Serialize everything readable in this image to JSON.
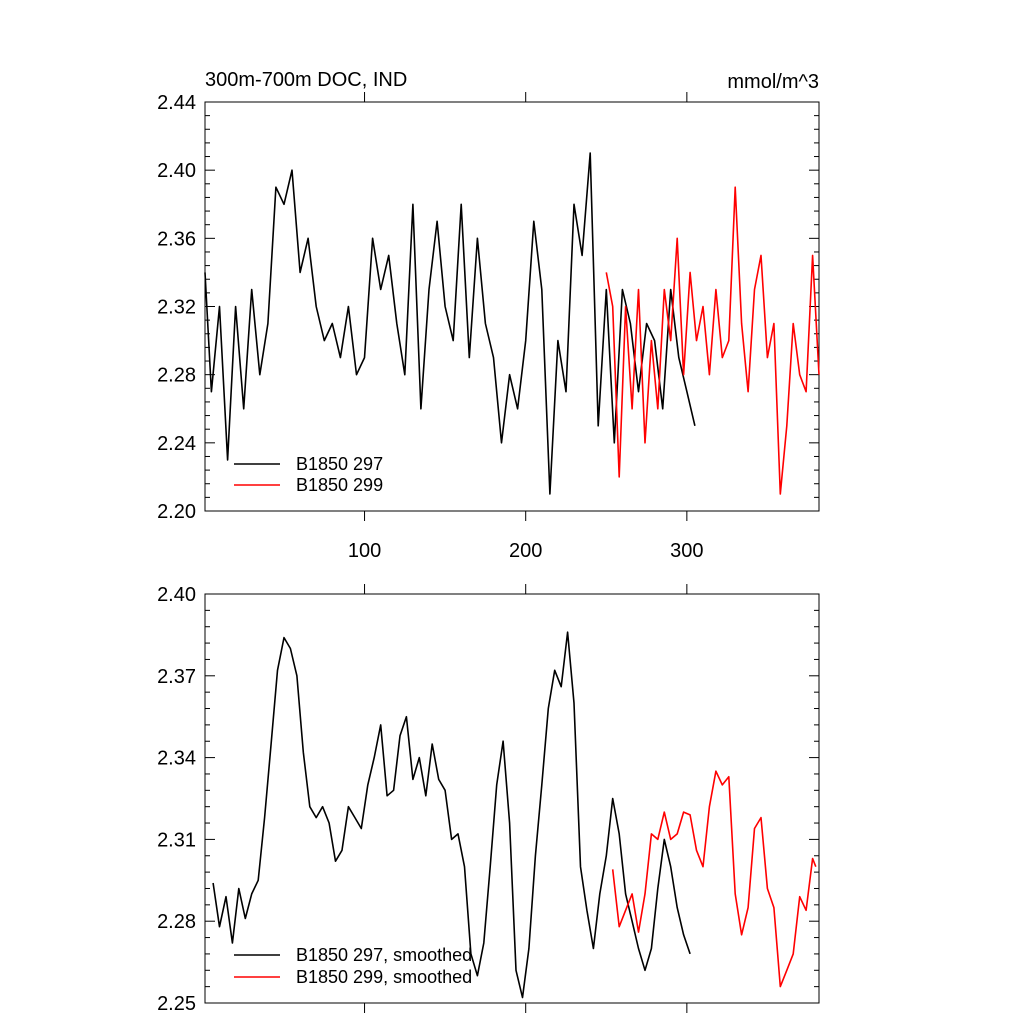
{
  "chart_data": [
    {
      "type": "line",
      "title": "300m-700m DOC, IND",
      "units_label": "mmol/m^3",
      "xlim": [
        1,
        382
      ],
      "ylim": [
        2.2,
        2.44
      ],
      "x_ticks": [
        100,
        200,
        300
      ],
      "x_tick_labels": [
        "100",
        "200",
        "300"
      ],
      "y_ticks": [
        2.2,
        2.24,
        2.28,
        2.32,
        2.36,
        2.4,
        2.44
      ],
      "y_tick_labels": [
        "2.20",
        "2.24",
        "2.28",
        "2.32",
        "2.36",
        "2.40",
        "2.44"
      ],
      "legend_position": "bottom-left",
      "series": [
        {
          "name": "B1850 297",
          "color": "#000000",
          "x": [
            1,
            5,
            10,
            15,
            20,
            25,
            30,
            35,
            40,
            45,
            50,
            55,
            60,
            65,
            70,
            75,
            80,
            85,
            90,
            95,
            100,
            105,
            110,
            115,
            120,
            125,
            130,
            135,
            140,
            145,
            150,
            155,
            160,
            165,
            170,
            175,
            180,
            185,
            190,
            195,
            200,
            205,
            210,
            215,
            220,
            225,
            230,
            235,
            240,
            245,
            250,
            255,
            260,
            265,
            270,
            275,
            280,
            285,
            290,
            295,
            300,
            305
          ],
          "values": [
            2.34,
            2.27,
            2.32,
            2.23,
            2.32,
            2.26,
            2.33,
            2.28,
            2.31,
            2.39,
            2.38,
            2.4,
            2.34,
            2.36,
            2.32,
            2.3,
            2.31,
            2.29,
            2.32,
            2.28,
            2.29,
            2.36,
            2.33,
            2.35,
            2.31,
            2.28,
            2.38,
            2.26,
            2.33,
            2.37,
            2.32,
            2.3,
            2.38,
            2.29,
            2.36,
            2.31,
            2.29,
            2.24,
            2.28,
            2.26,
            2.3,
            2.37,
            2.33,
            2.21,
            2.3,
            2.27,
            2.38,
            2.35,
            2.41,
            2.25,
            2.33,
            2.24,
            2.33,
            2.31,
            2.27,
            2.31,
            2.3,
            2.26,
            2.33,
            2.29,
            2.27,
            2.25
          ]
        },
        {
          "name": "B1850 299",
          "color": "#ff0000",
          "x": [
            250,
            254,
            258,
            262,
            266,
            270,
            274,
            278,
            282,
            286,
            290,
            294,
            298,
            302,
            306,
            310,
            314,
            318,
            322,
            326,
            330,
            334,
            338,
            342,
            346,
            350,
            354,
            358,
            362,
            366,
            370,
            374,
            378,
            382
          ],
          "values": [
            2.34,
            2.32,
            2.22,
            2.32,
            2.26,
            2.33,
            2.24,
            2.3,
            2.26,
            2.33,
            2.3,
            2.36,
            2.28,
            2.34,
            2.3,
            2.32,
            2.28,
            2.33,
            2.29,
            2.3,
            2.39,
            2.31,
            2.27,
            2.33,
            2.35,
            2.29,
            2.31,
            2.21,
            2.25,
            2.31,
            2.28,
            2.27,
            2.35,
            2.28
          ]
        }
      ]
    },
    {
      "type": "line",
      "xlim": [
        1,
        382
      ],
      "ylim": [
        2.25,
        2.4
      ],
      "x_ticks": [
        100,
        200,
        300
      ],
      "y_ticks": [
        2.25,
        2.28,
        2.31,
        2.34,
        2.37,
        2.4
      ],
      "y_tick_labels": [
        "2.25",
        "2.28",
        "2.31",
        "2.34",
        "2.37",
        "2.40"
      ],
      "legend_position": "bottom-left",
      "series": [
        {
          "name": "B1850 297, smoothed",
          "color": "#000000",
          "x": [
            6,
            10,
            14,
            18,
            22,
            26,
            30,
            34,
            38,
            42,
            46,
            50,
            54,
            58,
            62,
            66,
            70,
            74,
            78,
            82,
            86,
            90,
            94,
            98,
            102,
            106,
            110,
            114,
            118,
            122,
            126,
            130,
            134,
            138,
            142,
            146,
            150,
            154,
            158,
            162,
            166,
            170,
            174,
            178,
            182,
            186,
            190,
            194,
            198,
            202,
            206,
            210,
            214,
            218,
            222,
            226,
            230,
            234,
            238,
            242,
            246,
            250,
            254,
            258,
            262,
            266,
            270,
            274,
            278,
            282,
            286,
            290,
            294,
            298,
            302
          ],
          "values": [
            2.294,
            2.278,
            2.289,
            2.272,
            2.292,
            2.281,
            2.29,
            2.295,
            2.318,
            2.345,
            2.372,
            2.384,
            2.38,
            2.37,
            2.342,
            2.322,
            2.318,
            2.322,
            2.316,
            2.302,
            2.306,
            2.322,
            2.318,
            2.314,
            2.33,
            2.34,
            2.352,
            2.326,
            2.328,
            2.348,
            2.355,
            2.332,
            2.34,
            2.326,
            2.345,
            2.332,
            2.328,
            2.31,
            2.312,
            2.3,
            2.268,
            2.26,
            2.272,
            2.3,
            2.33,
            2.346,
            2.316,
            2.262,
            2.252,
            2.27,
            2.304,
            2.33,
            2.358,
            2.372,
            2.366,
            2.386,
            2.36,
            2.3,
            2.284,
            2.27,
            2.29,
            2.304,
            2.325,
            2.312,
            2.29,
            2.28,
            2.27,
            2.262,
            2.27,
            2.292,
            2.31,
            2.3,
            2.285,
            2.275,
            2.268
          ]
        },
        {
          "name": "B1850 299, smoothed",
          "color": "#ff0000",
          "x": [
            254,
            258,
            262,
            266,
            270,
            274,
            278,
            282,
            286,
            290,
            294,
            298,
            302,
            306,
            310,
            314,
            318,
            322,
            326,
            330,
            334,
            338,
            342,
            346,
            350,
            354,
            358,
            362,
            366,
            370,
            374,
            378,
            380
          ],
          "values": [
            2.299,
            2.278,
            2.284,
            2.29,
            2.276,
            2.29,
            2.312,
            2.31,
            2.32,
            2.31,
            2.312,
            2.32,
            2.319,
            2.306,
            2.3,
            2.322,
            2.335,
            2.33,
            2.333,
            2.29,
            2.275,
            2.285,
            2.314,
            2.318,
            2.292,
            2.285,
            2.256,
            2.262,
            2.268,
            2.289,
            2.284,
            2.303,
            2.3
          ]
        }
      ]
    }
  ]
}
